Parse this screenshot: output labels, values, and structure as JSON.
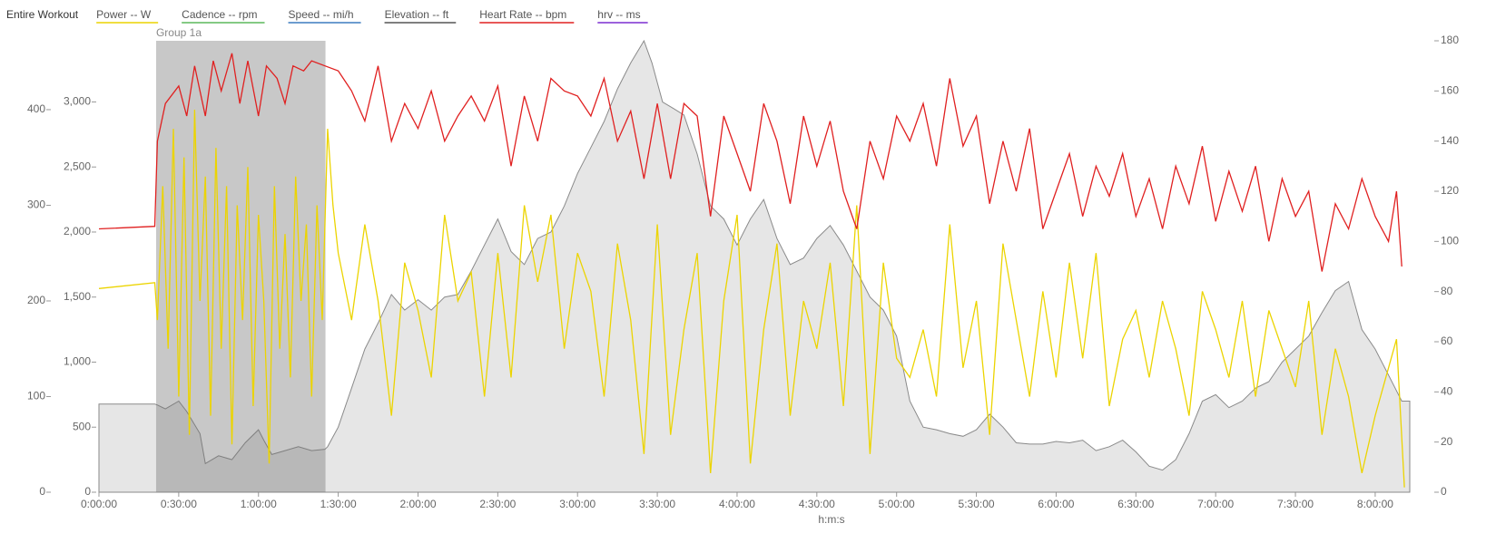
{
  "chart_data": {
    "type": "line",
    "title": "Entire Workout",
    "xlabel": "h:m:s",
    "highlight": {
      "label": "Group 1a",
      "x": [
        21.5,
        85.2
      ]
    },
    "xlim": [
      0,
      493
    ],
    "xticks": [
      {
        "value": 0,
        "label": "0:00:00"
      },
      {
        "value": 30,
        "label": "0:30:00"
      },
      {
        "value": 60,
        "label": "1:00:00"
      },
      {
        "value": 90,
        "label": "1:30:00"
      },
      {
        "value": 120,
        "label": "2:00:00"
      },
      {
        "value": 150,
        "label": "2:30:00"
      },
      {
        "value": 180,
        "label": "3:00:00"
      },
      {
        "value": 210,
        "label": "3:30:00"
      },
      {
        "value": 240,
        "label": "4:00:00"
      },
      {
        "value": 270,
        "label": "4:30:00"
      },
      {
        "value": 300,
        "label": "5:00:00"
      },
      {
        "value": 330,
        "label": "5:30:00"
      },
      {
        "value": 360,
        "label": "6:00:00"
      },
      {
        "value": 390,
        "label": "6:30:00"
      },
      {
        "value": 420,
        "label": "7:00:00"
      },
      {
        "value": 450,
        "label": "7:30:00"
      },
      {
        "value": 480,
        "label": "8:00:00"
      }
    ],
    "ylim": [
      0,
      472
    ],
    "yticks": [
      0,
      100,
      200,
      300,
      400
    ],
    "y3lim": [
      0,
      3470
    ],
    "y3ticks": [
      0,
      500,
      {
        "value": 1000,
        "label": "1,000"
      },
      {
        "value": 1500,
        "label": "1,500"
      },
      {
        "value": 2000,
        "label": "2,000"
      },
      {
        "value": 2500,
        "label": "2,500"
      },
      {
        "value": 3000,
        "label": "3,000"
      }
    ],
    "y2lim": [
      0,
      180
    ],
    "y2ticks": [
      0,
      20,
      40,
      60,
      80,
      100,
      120,
      140,
      160,
      180
    ],
    "series": [
      {
        "name": "Power  -- W",
        "color": "#ecd400",
        "axis": "y",
        "x": [
          0,
          21,
          22,
          24,
          26,
          28,
          30,
          32,
          34,
          36,
          38,
          40,
          42,
          44,
          46,
          48,
          50,
          52,
          54,
          56,
          58,
          60,
          62,
          64,
          66,
          68,
          70,
          72,
          74,
          76,
          78,
          80,
          82,
          84,
          86,
          88,
          90,
          95,
          100,
          105,
          110,
          115,
          120,
          125,
          130,
          135,
          140,
          145,
          150,
          155,
          160,
          165,
          170,
          175,
          180,
          185,
          190,
          195,
          200,
          205,
          210,
          215,
          220,
          225,
          230,
          235,
          240,
          245,
          250,
          255,
          260,
          265,
          270,
          275,
          280,
          285,
          290,
          295,
          300,
          305,
          310,
          315,
          320,
          325,
          330,
          335,
          340,
          345,
          350,
          355,
          360,
          365,
          370,
          375,
          380,
          385,
          390,
          395,
          400,
          405,
          410,
          415,
          420,
          425,
          430,
          435,
          440,
          445,
          450,
          455,
          460,
          465,
          470,
          475,
          480,
          485,
          488,
          491
        ],
        "values": [
          213,
          219,
          180,
          320,
          150,
          380,
          100,
          350,
          60,
          400,
          200,
          330,
          80,
          360,
          150,
          320,
          50,
          300,
          180,
          340,
          90,
          290,
          200,
          30,
          320,
          150,
          270,
          120,
          330,
          200,
          280,
          100,
          300,
          180,
          380,
          300,
          250,
          180,
          280,
          200,
          80,
          240,
          190,
          120,
          290,
          200,
          230,
          100,
          250,
          120,
          300,
          220,
          290,
          150,
          250,
          210,
          100,
          260,
          180,
          40,
          280,
          60,
          170,
          250,
          20,
          200,
          290,
          30,
          170,
          260,
          80,
          200,
          150,
          240,
          90,
          300,
          40,
          240,
          140,
          120,
          170,
          100,
          280,
          130,
          200,
          60,
          260,
          180,
          100,
          210,
          120,
          240,
          140,
          250,
          90,
          160,
          190,
          120,
          200,
          150,
          80,
          210,
          170,
          120,
          200,
          100,
          190,
          150,
          110,
          200,
          60,
          150,
          100,
          20,
          80,
          130,
          160,
          5
        ]
      },
      {
        "name": "Cadence  -- rpm",
        "color": "#5cb85c",
        "axis": "y",
        "values": null
      },
      {
        "name": "Speed  -- mi/h",
        "color": "#3b7bbf",
        "axis": "y",
        "values": null
      },
      {
        "name": "Elevation  -- ft",
        "color": "#555555",
        "axis": "y3",
        "style": "area",
        "x": [
          0,
          21,
          22,
          25,
          30,
          33,
          38,
          40,
          45,
          50,
          55,
          60,
          62,
          65,
          70,
          75,
          80,
          85,
          86,
          90,
          95,
          100,
          105,
          110,
          115,
          120,
          125,
          130,
          135,
          140,
          145,
          150,
          155,
          160,
          165,
          170,
          175,
          180,
          185,
          190,
          195,
          200,
          205,
          208,
          212,
          216,
          220,
          225,
          230,
          235,
          240,
          245,
          250,
          255,
          260,
          265,
          270,
          275,
          280,
          285,
          290,
          295,
          300,
          305,
          310,
          315,
          320,
          325,
          330,
          335,
          340,
          345,
          350,
          355,
          360,
          365,
          370,
          375,
          380,
          385,
          390,
          395,
          400,
          405,
          410,
          415,
          420,
          425,
          430,
          435,
          440,
          445,
          450,
          455,
          460,
          465,
          470,
          475,
          480,
          485,
          490,
          493
        ],
        "values": [
          678,
          678,
          670,
          640,
          700,
          620,
          450,
          220,
          280,
          250,
          380,
          480,
          400,
          290,
          320,
          350,
          320,
          330,
          350,
          500,
          800,
          1100,
          1300,
          1520,
          1400,
          1480,
          1400,
          1500,
          1520,
          1700,
          1900,
          2100,
          1850,
          1750,
          1950,
          2000,
          2200,
          2450,
          2650,
          2850,
          3100,
          3300,
          3470,
          3300,
          3000,
          2950,
          2900,
          2600,
          2200,
          2100,
          1900,
          2100,
          2250,
          1950,
          1750,
          1800,
          1950,
          2050,
          1900,
          1700,
          1500,
          1400,
          1200,
          700,
          500,
          480,
          450,
          430,
          480,
          600,
          500,
          380,
          370,
          370,
          390,
          380,
          400,
          320,
          350,
          400,
          310,
          200,
          170,
          250,
          450,
          700,
          750,
          650,
          700,
          800,
          850,
          1000,
          1100,
          1200,
          1380,
          1550,
          1620,
          1250,
          1100,
          900,
          700,
          700
        ]
      },
      {
        "name": "Heart Rate  -- bpm",
        "color": "#e02020",
        "axis": "y2",
        "x": [
          0,
          21,
          22,
          25,
          30,
          33,
          36,
          40,
          43,
          46,
          50,
          53,
          56,
          60,
          63,
          67,
          70,
          73,
          77,
          80,
          85,
          90,
          95,
          100,
          105,
          110,
          115,
          120,
          125,
          130,
          135,
          140,
          145,
          150,
          155,
          160,
          165,
          170,
          175,
          180,
          185,
          190,
          195,
          200,
          205,
          210,
          215,
          220,
          225,
          230,
          235,
          240,
          245,
          250,
          255,
          260,
          265,
          270,
          275,
          280,
          285,
          290,
          295,
          300,
          305,
          310,
          315,
          320,
          325,
          330,
          335,
          340,
          345,
          350,
          355,
          360,
          365,
          370,
          375,
          380,
          385,
          390,
          395,
          400,
          405,
          410,
          415,
          420,
          425,
          430,
          435,
          440,
          445,
          450,
          455,
          460,
          465,
          470,
          475,
          480,
          485,
          488,
          490
        ],
        "values": [
          105,
          106,
          140,
          155,
          162,
          150,
          170,
          150,
          172,
          160,
          175,
          155,
          172,
          150,
          170,
          165,
          155,
          170,
          168,
          172,
          170,
          168,
          160,
          148,
          170,
          140,
          155,
          145,
          160,
          140,
          150,
          158,
          148,
          162,
          130,
          158,
          140,
          165,
          160,
          158,
          150,
          165,
          140,
          152,
          125,
          155,
          125,
          155,
          150,
          110,
          150,
          135,
          120,
          155,
          140,
          115,
          150,
          130,
          148,
          120,
          105,
          140,
          125,
          150,
          140,
          155,
          130,
          165,
          138,
          150,
          115,
          140,
          120,
          145,
          105,
          120,
          135,
          110,
          130,
          118,
          135,
          110,
          125,
          105,
          130,
          115,
          138,
          108,
          128,
          112,
          130,
          100,
          125,
          110,
          120,
          88,
          115,
          105,
          125,
          110,
          100,
          120,
          90
        ]
      },
      {
        "name": "hrv  -- ms",
        "color": "#7b2fd0",
        "axis": "y2",
        "values": null
      }
    ]
  }
}
